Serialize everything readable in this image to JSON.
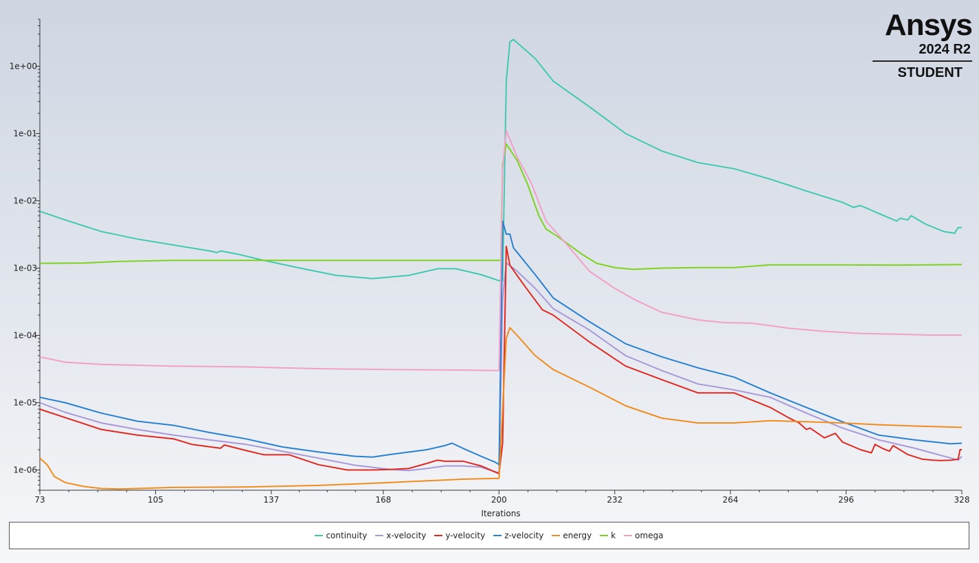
{
  "logo": {
    "brand": "Ansys",
    "version": "2024 R2",
    "edition": "STUDENT"
  },
  "chart_data": {
    "type": "line",
    "title": "",
    "xlabel": "Iterations",
    "ylabel": "",
    "yscale": "log",
    "xlim": [
      73,
      328
    ],
    "ylim": [
      5e-07,
      5
    ],
    "xticks": [
      73,
      105,
      137,
      168,
      200,
      232,
      264,
      296,
      328
    ],
    "yticks": [
      {
        "value": 1e-06,
        "label": "1e-06"
      },
      {
        "value": 1e-05,
        "label": "1e-05"
      },
      {
        "value": 0.0001,
        "label": "1e-04"
      },
      {
        "value": 0.001,
        "label": "1e-03"
      },
      {
        "value": 0.01,
        "label": "1e-02"
      },
      {
        "value": 0.1,
        "label": "1e-01"
      },
      {
        "value": 1,
        "label": "1e+00"
      }
    ],
    "grid": false,
    "legend_position": "bottom",
    "series": [
      {
        "name": "continuity",
        "color": "#40c9b0",
        "points": [
          [
            73,
            0.007
          ],
          [
            80,
            0.0052
          ],
          [
            90,
            0.0035
          ],
          [
            100,
            0.0027
          ],
          [
            110,
            0.0022
          ],
          [
            120,
            0.0018
          ],
          [
            122,
            0.0017
          ],
          [
            123,
            0.0018
          ],
          [
            128,
            0.0016
          ],
          [
            135,
            0.0013
          ],
          [
            145,
            0.001
          ],
          [
            155,
            0.00078
          ],
          [
            165,
            0.0007
          ],
          [
            175,
            0.00078
          ],
          [
            183,
            0.00098
          ],
          [
            188,
            0.00098
          ],
          [
            195,
            0.0008
          ],
          [
            200,
            0.00065
          ],
          [
            201,
            0.00065
          ],
          [
            202,
            0.6
          ],
          [
            203,
            2.3
          ],
          [
            204,
            2.5
          ],
          [
            210,
            1.3
          ],
          [
            215,
            0.6
          ],
          [
            225,
            0.25
          ],
          [
            235,
            0.1
          ],
          [
            245,
            0.055
          ],
          [
            255,
            0.037
          ],
          [
            265,
            0.03
          ],
          [
            275,
            0.021
          ],
          [
            285,
            0.014
          ],
          [
            295,
            0.0095
          ],
          [
            298,
            0.008
          ],
          [
            300,
            0.0085
          ],
          [
            305,
            0.0065
          ],
          [
            310,
            0.005
          ],
          [
            311,
            0.0055
          ],
          [
            313,
            0.0052
          ],
          [
            314,
            0.006
          ],
          [
            318,
            0.0045
          ],
          [
            323,
            0.0035
          ],
          [
            326,
            0.0033
          ],
          [
            327,
            0.004
          ],
          [
            328,
            0.004
          ]
        ]
      },
      {
        "name": "x-velocity",
        "color": "#a898d8",
        "points": [
          [
            73,
            1e-05
          ],
          [
            80,
            7.2e-06
          ],
          [
            90,
            5e-06
          ],
          [
            100,
            4e-06
          ],
          [
            110,
            3.3e-06
          ],
          [
            120,
            2.8e-06
          ],
          [
            130,
            2.4e-06
          ],
          [
            140,
            1.9e-06
          ],
          [
            150,
            1.5e-06
          ],
          [
            160,
            1.18e-06
          ],
          [
            170,
            1.02e-06
          ],
          [
            175,
            9.8e-07
          ],
          [
            180,
            1.05e-06
          ],
          [
            185,
            1.15e-06
          ],
          [
            190,
            1.15e-06
          ],
          [
            195,
            1.1e-06
          ],
          [
            200,
            9e-07
          ],
          [
            201,
            0.00035
          ],
          [
            202,
            0.0012
          ],
          [
            205,
            0.0009
          ],
          [
            210,
            0.0005
          ],
          [
            215,
            0.00025
          ],
          [
            225,
            0.00012
          ],
          [
            235,
            5e-05
          ],
          [
            245,
            3e-05
          ],
          [
            255,
            1.9e-05
          ],
          [
            265,
            1.55e-05
          ],
          [
            275,
            1.2e-05
          ],
          [
            285,
            7e-06
          ],
          [
            295,
            4.2e-06
          ],
          [
            305,
            2.8e-06
          ],
          [
            315,
            2.1e-06
          ],
          [
            325,
            1.5e-06
          ],
          [
            327,
            1.4e-06
          ],
          [
            328,
            1.6e-06
          ]
        ]
      },
      {
        "name": "y-velocity",
        "color": "#e02820",
        "points": [
          [
            73,
            8e-06
          ],
          [
            80,
            6e-06
          ],
          [
            90,
            4e-06
          ],
          [
            100,
            3.3e-06
          ],
          [
            110,
            2.9e-06
          ],
          [
            115,
            2.4e-06
          ],
          [
            123,
            2.1e-06
          ],
          [
            124,
            2.35e-06
          ],
          [
            130,
            1.95e-06
          ],
          [
            135,
            1.68e-06
          ],
          [
            142,
            1.68e-06
          ],
          [
            150,
            1.2e-06
          ],
          [
            158,
            1e-06
          ],
          [
            165,
            1e-06
          ],
          [
            170,
            1.02e-06
          ],
          [
            175,
            1.05e-06
          ],
          [
            180,
            1.25e-06
          ],
          [
            183,
            1.4e-06
          ],
          [
            185,
            1.35e-06
          ],
          [
            190,
            1.35e-06
          ],
          [
            195,
            1.15e-06
          ],
          [
            200,
            8.8e-07
          ],
          [
            201,
            2.5e-06
          ],
          [
            202,
            0.0021
          ],
          [
            203,
            0.0011
          ],
          [
            207,
            0.00055
          ],
          [
            212,
            0.00024
          ],
          [
            215,
            0.0002
          ],
          [
            225,
            8e-05
          ],
          [
            235,
            3.5e-05
          ],
          [
            245,
            2.2e-05
          ],
          [
            255,
            1.4e-05
          ],
          [
            265,
            1.4e-05
          ],
          [
            275,
            8.5e-06
          ],
          [
            280,
            6e-06
          ],
          [
            283,
            5e-06
          ],
          [
            285,
            4e-06
          ],
          [
            286,
            4.2e-06
          ],
          [
            290,
            3e-06
          ],
          [
            293,
            3.5e-06
          ],
          [
            295,
            2.6e-06
          ],
          [
            300,
            2e-06
          ],
          [
            303,
            1.8e-06
          ],
          [
            304,
            2.4e-06
          ],
          [
            306,
            2.1e-06
          ],
          [
            308,
            1.9e-06
          ],
          [
            309,
            2.3e-06
          ],
          [
            313,
            1.7e-06
          ],
          [
            317,
            1.45e-06
          ],
          [
            320,
            1.4e-06
          ],
          [
            322,
            1.38e-06
          ],
          [
            325,
            1.4e-06
          ],
          [
            327,
            1.45e-06
          ],
          [
            327.5,
            2e-06
          ],
          [
            328,
            2e-06
          ]
        ]
      },
      {
        "name": "z-velocity",
        "color": "#2880d0",
        "points": [
          [
            73,
            1.2e-05
          ],
          [
            80,
            1e-05
          ],
          [
            90,
            7e-06
          ],
          [
            100,
            5.3e-06
          ],
          [
            110,
            4.6e-06
          ],
          [
            120,
            3.6e-06
          ],
          [
            130,
            2.9e-06
          ],
          [
            140,
            2.2e-06
          ],
          [
            150,
            1.85e-06
          ],
          [
            160,
            1.6e-06
          ],
          [
            165,
            1.55e-06
          ],
          [
            170,
            1.7e-06
          ],
          [
            180,
            2e-06
          ],
          [
            185,
            2.3e-06
          ],
          [
            187,
            2.5e-06
          ],
          [
            190,
            2.1e-06
          ],
          [
            195,
            1.6e-06
          ],
          [
            199,
            1.3e-06
          ],
          [
            200,
            1.2e-06
          ],
          [
            201,
            0.005
          ],
          [
            202,
            0.0032
          ],
          [
            203,
            0.0032
          ],
          [
            204,
            0.002
          ],
          [
            210,
            0.0008
          ],
          [
            215,
            0.00036
          ],
          [
            225,
            0.00016
          ],
          [
            235,
            7.5e-05
          ],
          [
            245,
            4.8e-05
          ],
          [
            255,
            3.3e-05
          ],
          [
            265,
            2.4e-05
          ],
          [
            275,
            1.4e-05
          ],
          [
            285,
            8.5e-06
          ],
          [
            295,
            5.2e-06
          ],
          [
            305,
            3.3e-06
          ],
          [
            315,
            2.8e-06
          ],
          [
            325,
            2.45e-06
          ],
          [
            328,
            2.5e-06
          ]
        ]
      },
      {
        "name": "energy",
        "color": "#f08c1c",
        "points": [
          [
            73,
            1.5e-06
          ],
          [
            75,
            1.2e-06
          ],
          [
            77,
            8e-07
          ],
          [
            80,
            6.5e-07
          ],
          [
            85,
            5.7e-07
          ],
          [
            90,
            5.3e-07
          ],
          [
            95,
            5.2e-07
          ],
          [
            100,
            5.3e-07
          ],
          [
            110,
            5.5e-07
          ],
          [
            130,
            5.6e-07
          ],
          [
            150,
            5.9e-07
          ],
          [
            170,
            6.5e-07
          ],
          [
            190,
            7.3e-07
          ],
          [
            200,
            7.5e-07
          ],
          [
            201,
            8e-06
          ],
          [
            202,
            9e-05
          ],
          [
            203,
            0.00013
          ],
          [
            205,
            0.0001
          ],
          [
            210,
            5e-05
          ],
          [
            215,
            3.1e-05
          ],
          [
            225,
            1.7e-05
          ],
          [
            235,
            9e-06
          ],
          [
            245,
            5.9e-06
          ],
          [
            255,
            5e-06
          ],
          [
            265,
            5e-06
          ],
          [
            275,
            5.4e-06
          ],
          [
            285,
            5.2e-06
          ],
          [
            295,
            5e-06
          ],
          [
            305,
            4.7e-06
          ],
          [
            315,
            4.5e-06
          ],
          [
            328,
            4.3e-06
          ]
        ]
      },
      {
        "name": "k",
        "color": "#7dd21c",
        "points": [
          [
            73,
            0.00118
          ],
          [
            85,
            0.00119
          ],
          [
            95,
            0.00126
          ],
          [
            110,
            0.0013
          ],
          [
            150,
            0.0013
          ],
          [
            180,
            0.0013
          ],
          [
            200,
            0.0013
          ],
          [
            200.5,
            0.0013
          ],
          [
            201,
            0.035
          ],
          [
            202,
            0.07
          ],
          [
            205,
            0.04
          ],
          [
            208,
            0.017
          ],
          [
            211,
            0.006
          ],
          [
            213,
            0.0038
          ],
          [
            216,
            0.003
          ],
          [
            220,
            0.0021
          ],
          [
            223,
            0.0016
          ],
          [
            227,
            0.00118
          ],
          [
            232,
            0.00102
          ],
          [
            237,
            0.00096
          ],
          [
            245,
            0.001
          ],
          [
            255,
            0.00102
          ],
          [
            265,
            0.00102
          ],
          [
            275,
            0.00112
          ],
          [
            290,
            0.00112
          ],
          [
            310,
            0.00111
          ],
          [
            328,
            0.00113
          ]
        ]
      },
      {
        "name": "omega",
        "color": "#f2a0c8",
        "points": [
          [
            73,
            4.8e-05
          ],
          [
            80,
            4e-05
          ],
          [
            90,
            3.7e-05
          ],
          [
            110,
            3.5e-05
          ],
          [
            130,
            3.4e-05
          ],
          [
            150,
            3.2e-05
          ],
          [
            170,
            3.1e-05
          ],
          [
            190,
            3.05e-05
          ],
          [
            200,
            3e-05
          ],
          [
            201,
            0.03
          ],
          [
            202,
            0.11
          ],
          [
            205,
            0.045
          ],
          [
            209,
            0.018
          ],
          [
            213,
            0.005
          ],
          [
            218,
            0.0025
          ],
          [
            225,
            0.0009
          ],
          [
            232,
            0.0005
          ],
          [
            238,
            0.00033
          ],
          [
            245,
            0.00022
          ],
          [
            255,
            0.00017
          ],
          [
            262,
            0.000155
          ],
          [
            270,
            0.000152
          ],
          [
            280,
            0.000128
          ],
          [
            290,
            0.000115
          ],
          [
            300,
            0.000107
          ],
          [
            310,
            0.000104
          ],
          [
            320,
            0.000101
          ],
          [
            328,
            0.000101
          ]
        ]
      }
    ]
  }
}
